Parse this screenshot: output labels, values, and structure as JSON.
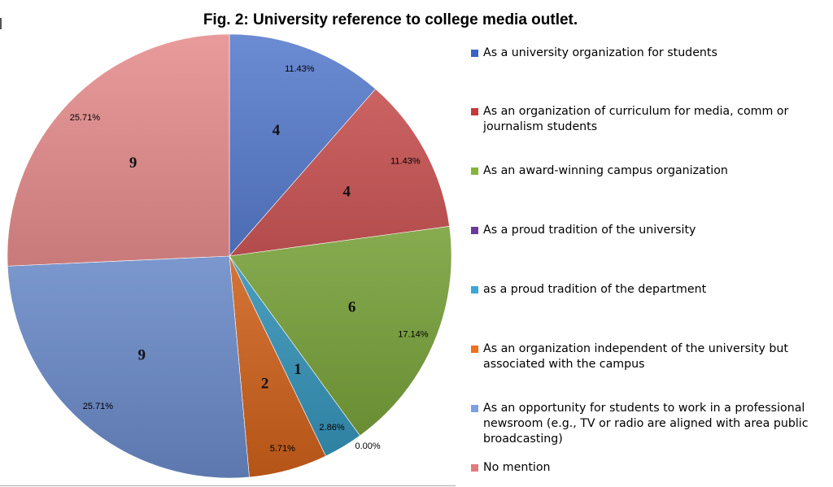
{
  "chart_data": {
    "type": "pie",
    "title": "Fig. 2:  University reference to college media outlet.",
    "categories": [
      "As a university organization for students",
      "As an organization of curriculum for media, comm or journalism students",
      "As an award-winning campus organization",
      "As a proud tradition of the university",
      "as a proud tradition of the department",
      "As an organization independent of the university but associated with the campus",
      "As an opportunity for students to work in a professional newsroom (e.g., TV or radio are aligned with area public broadcasting)",
      "No mention"
    ],
    "values": [
      4,
      4,
      6,
      0,
      1,
      2,
      9,
      9
    ],
    "percent_labels": [
      "11.43%",
      "11.43%",
      "17.14%",
      "0.00%",
      "2.86%",
      "5.71%",
      "25.71%",
      "25.71%"
    ],
    "value_labels": [
      "4",
      "4",
      "6",
      "",
      "1",
      "2",
      "9",
      "9"
    ],
    "colors": [
      "#3a64c4",
      "#c43a3a",
      "#84b43a",
      "#6a3a9a",
      "#3aa8d4",
      "#f0701e",
      "#7aa0e8",
      "#e27a7a"
    ],
    "legend_position": "right"
  }
}
